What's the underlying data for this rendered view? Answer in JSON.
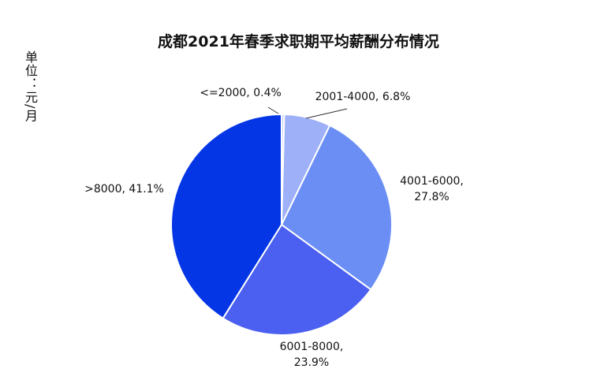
{
  "chart_data": {
    "type": "pie",
    "title": "成都2021年春季求职期平均薪酬分布情况",
    "ylabel": "单位：元/月",
    "categories": [
      "<=2000",
      "2001-4000",
      "4001-6000",
      "6001-8000",
      ">8000"
    ],
    "values": [
      0.4,
      6.8,
      27.8,
      23.9,
      41.1
    ],
    "value_labels": [
      "<=2000, 0.4%",
      "2001-4000, 6.8%",
      "4001-6000, 27.8%",
      "6001-8000, 23.9%",
      ">8000, 41.1%"
    ],
    "colors": [
      "#c4cdfb",
      "#9db0f8",
      "#6b8ef5",
      "#4b5ff0",
      "#0536e6"
    ]
  }
}
